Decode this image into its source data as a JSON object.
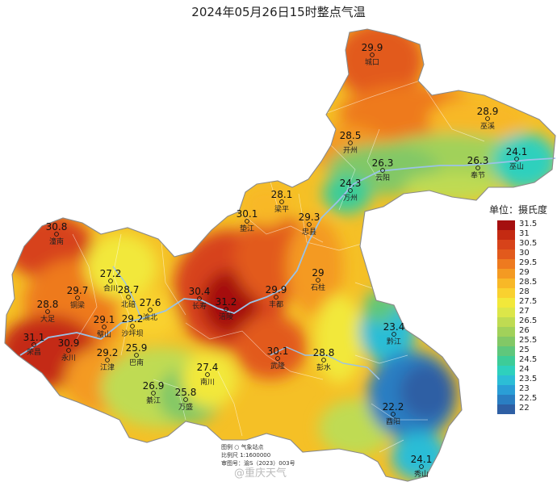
{
  "title": "2024年05月26日15时整点气温",
  "unit_label": "单位：摄氏度",
  "legend": [
    {
      "label": "31.5",
      "color": "#a50f0f"
    },
    {
      "label": "31",
      "color": "#c42a12"
    },
    {
      "label": "30.5",
      "color": "#d7431a"
    },
    {
      "label": "30",
      "color": "#e25a1c"
    },
    {
      "label": "29.5",
      "color": "#ee7a1f"
    },
    {
      "label": "29",
      "color": "#f49a22"
    },
    {
      "label": "28.5",
      "color": "#f8b827"
    },
    {
      "label": "28",
      "color": "#f9d12f"
    },
    {
      "label": "27.5",
      "color": "#f2e83a"
    },
    {
      "label": "27",
      "color": "#dce649"
    },
    {
      "label": "26.5",
      "color": "#bfdb52"
    },
    {
      "label": "26",
      "color": "#a1d15a"
    },
    {
      "label": "25.5",
      "color": "#82c866"
    },
    {
      "label": "25",
      "color": "#5fc77c"
    },
    {
      "label": "24.5",
      "color": "#3dcc98"
    },
    {
      "label": "24",
      "color": "#2ed0bd"
    },
    {
      "label": "23.5",
      "color": "#2cbdd6"
    },
    {
      "label": "23",
      "color": "#2a9ed6"
    },
    {
      "label": "22.5",
      "color": "#2a7ec2"
    },
    {
      "label": "22",
      "color": "#2e5fa4"
    }
  ],
  "stations": [
    {
      "name": "城口",
      "value": "29.9"
    },
    {
      "name": "巫溪",
      "value": "28.9"
    },
    {
      "name": "开州",
      "value": "28.5"
    },
    {
      "name": "云阳",
      "value": "26.3"
    },
    {
      "name": "奉节",
      "value": "26.3"
    },
    {
      "name": "巫山",
      "value": "24.1"
    },
    {
      "name": "万州",
      "value": "24.3"
    },
    {
      "name": "梁平",
      "value": "28.1"
    },
    {
      "name": "垫江",
      "value": "30.1"
    },
    {
      "name": "忠县",
      "value": "29.3"
    },
    {
      "name": "石柱",
      "value": "29"
    },
    {
      "name": "潼南",
      "value": "30.8"
    },
    {
      "name": "合川",
      "value": "27.2"
    },
    {
      "name": "铜梁",
      "value": "29.7"
    },
    {
      "name": "北碚",
      "value": "28.7"
    },
    {
      "name": "渝北",
      "value": "27.6"
    },
    {
      "name": "大足",
      "value": "28.8"
    },
    {
      "name": "璧山",
      "value": "29.1"
    },
    {
      "name": "沙坪坝",
      "value": "29.2"
    },
    {
      "name": "长寿",
      "value": "30.4"
    },
    {
      "name": "涪陵",
      "value": "31.2"
    },
    {
      "name": "丰都",
      "value": "29.9"
    },
    {
      "name": "荣昌",
      "value": "31.1"
    },
    {
      "name": "永川",
      "value": "30.9"
    },
    {
      "name": "江津",
      "value": "29.2"
    },
    {
      "name": "巴南",
      "value": "25.9"
    },
    {
      "name": "武隆",
      "value": "30.1"
    },
    {
      "name": "彭水",
      "value": "28.8"
    },
    {
      "name": "黔江",
      "value": "23.4"
    },
    {
      "name": "南川",
      "value": "27.4"
    },
    {
      "name": "綦江",
      "value": "26.9"
    },
    {
      "name": "万盛",
      "value": "25.8"
    },
    {
      "name": "酉阳",
      "value": "22.2"
    },
    {
      "name": "秀山",
      "value": "24.1"
    }
  ],
  "notes": {
    "legend_line": "图例  ○  气象站点",
    "scale_line": "比例尺  1:1600000",
    "approval_line": "审图号：渝S（2023）003号"
  },
  "watermark": "@重庆天气"
}
